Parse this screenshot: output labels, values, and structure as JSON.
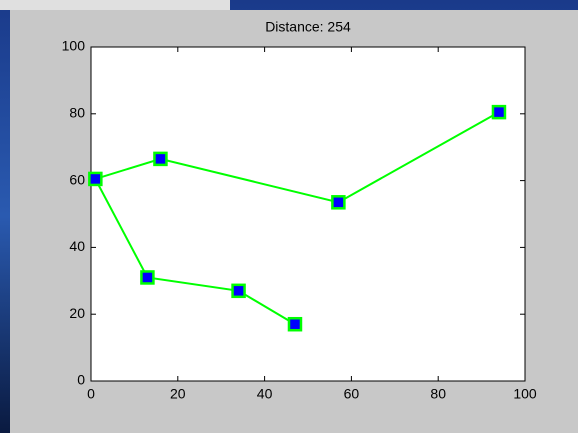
{
  "chart_data": {
    "type": "line",
    "title": "Distance: 254",
    "x": [
      47,
      34,
      13,
      1,
      16,
      57,
      94
    ],
    "values": [
      17,
      27,
      31,
      60.5,
      66.5,
      53.5,
      80.5
    ],
    "color": "#00ff00",
    "marker_color": "#0000ff",
    "xlim": [
      0,
      100
    ],
    "xticks": [
      0,
      20,
      40,
      60,
      80,
      100
    ],
    "ylim": [
      0,
      100
    ],
    "yticks": [
      0,
      20,
      40,
      60,
      80,
      100
    ]
  }
}
